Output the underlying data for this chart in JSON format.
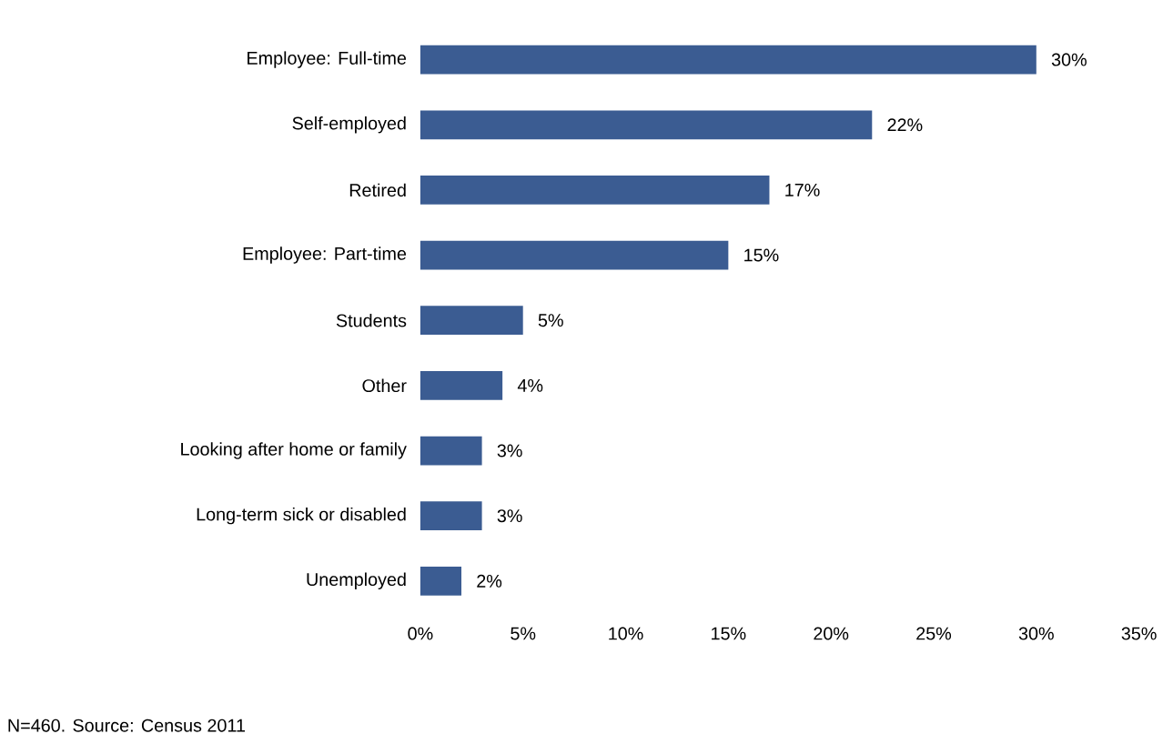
{
  "chart_data": {
    "type": "bar",
    "orientation": "horizontal",
    "color": "#3b5c92",
    "categories": [
      "Employee: Full-time",
      "Self-employed",
      "Retired",
      "Employee: Part-time",
      "Students",
      "Other",
      "Looking after home or family",
      "Long-term sick or disabled",
      "Unemployed"
    ],
    "values": [
      30,
      22,
      17,
      15,
      5,
      4,
      3,
      3,
      2
    ],
    "value_labels": [
      "30%",
      "22%",
      "17%",
      "15%",
      "5%",
      "4%",
      "3%",
      "3%",
      "2%"
    ],
    "xlim": [
      0,
      35
    ],
    "xticks": [
      {
        "value": 0,
        "label": "0%"
      },
      {
        "value": 5,
        "label": "5%"
      },
      {
        "value": 10,
        "label": "10%"
      },
      {
        "value": 15,
        "label": "15%"
      },
      {
        "value": 20,
        "label": "20%"
      },
      {
        "value": 25,
        "label": "25%"
      },
      {
        "value": 30,
        "label": "30%"
      },
      {
        "value": 35,
        "label": "35%"
      }
    ],
    "annotations": [
      "N=460. Source: Census 2011"
    ]
  }
}
